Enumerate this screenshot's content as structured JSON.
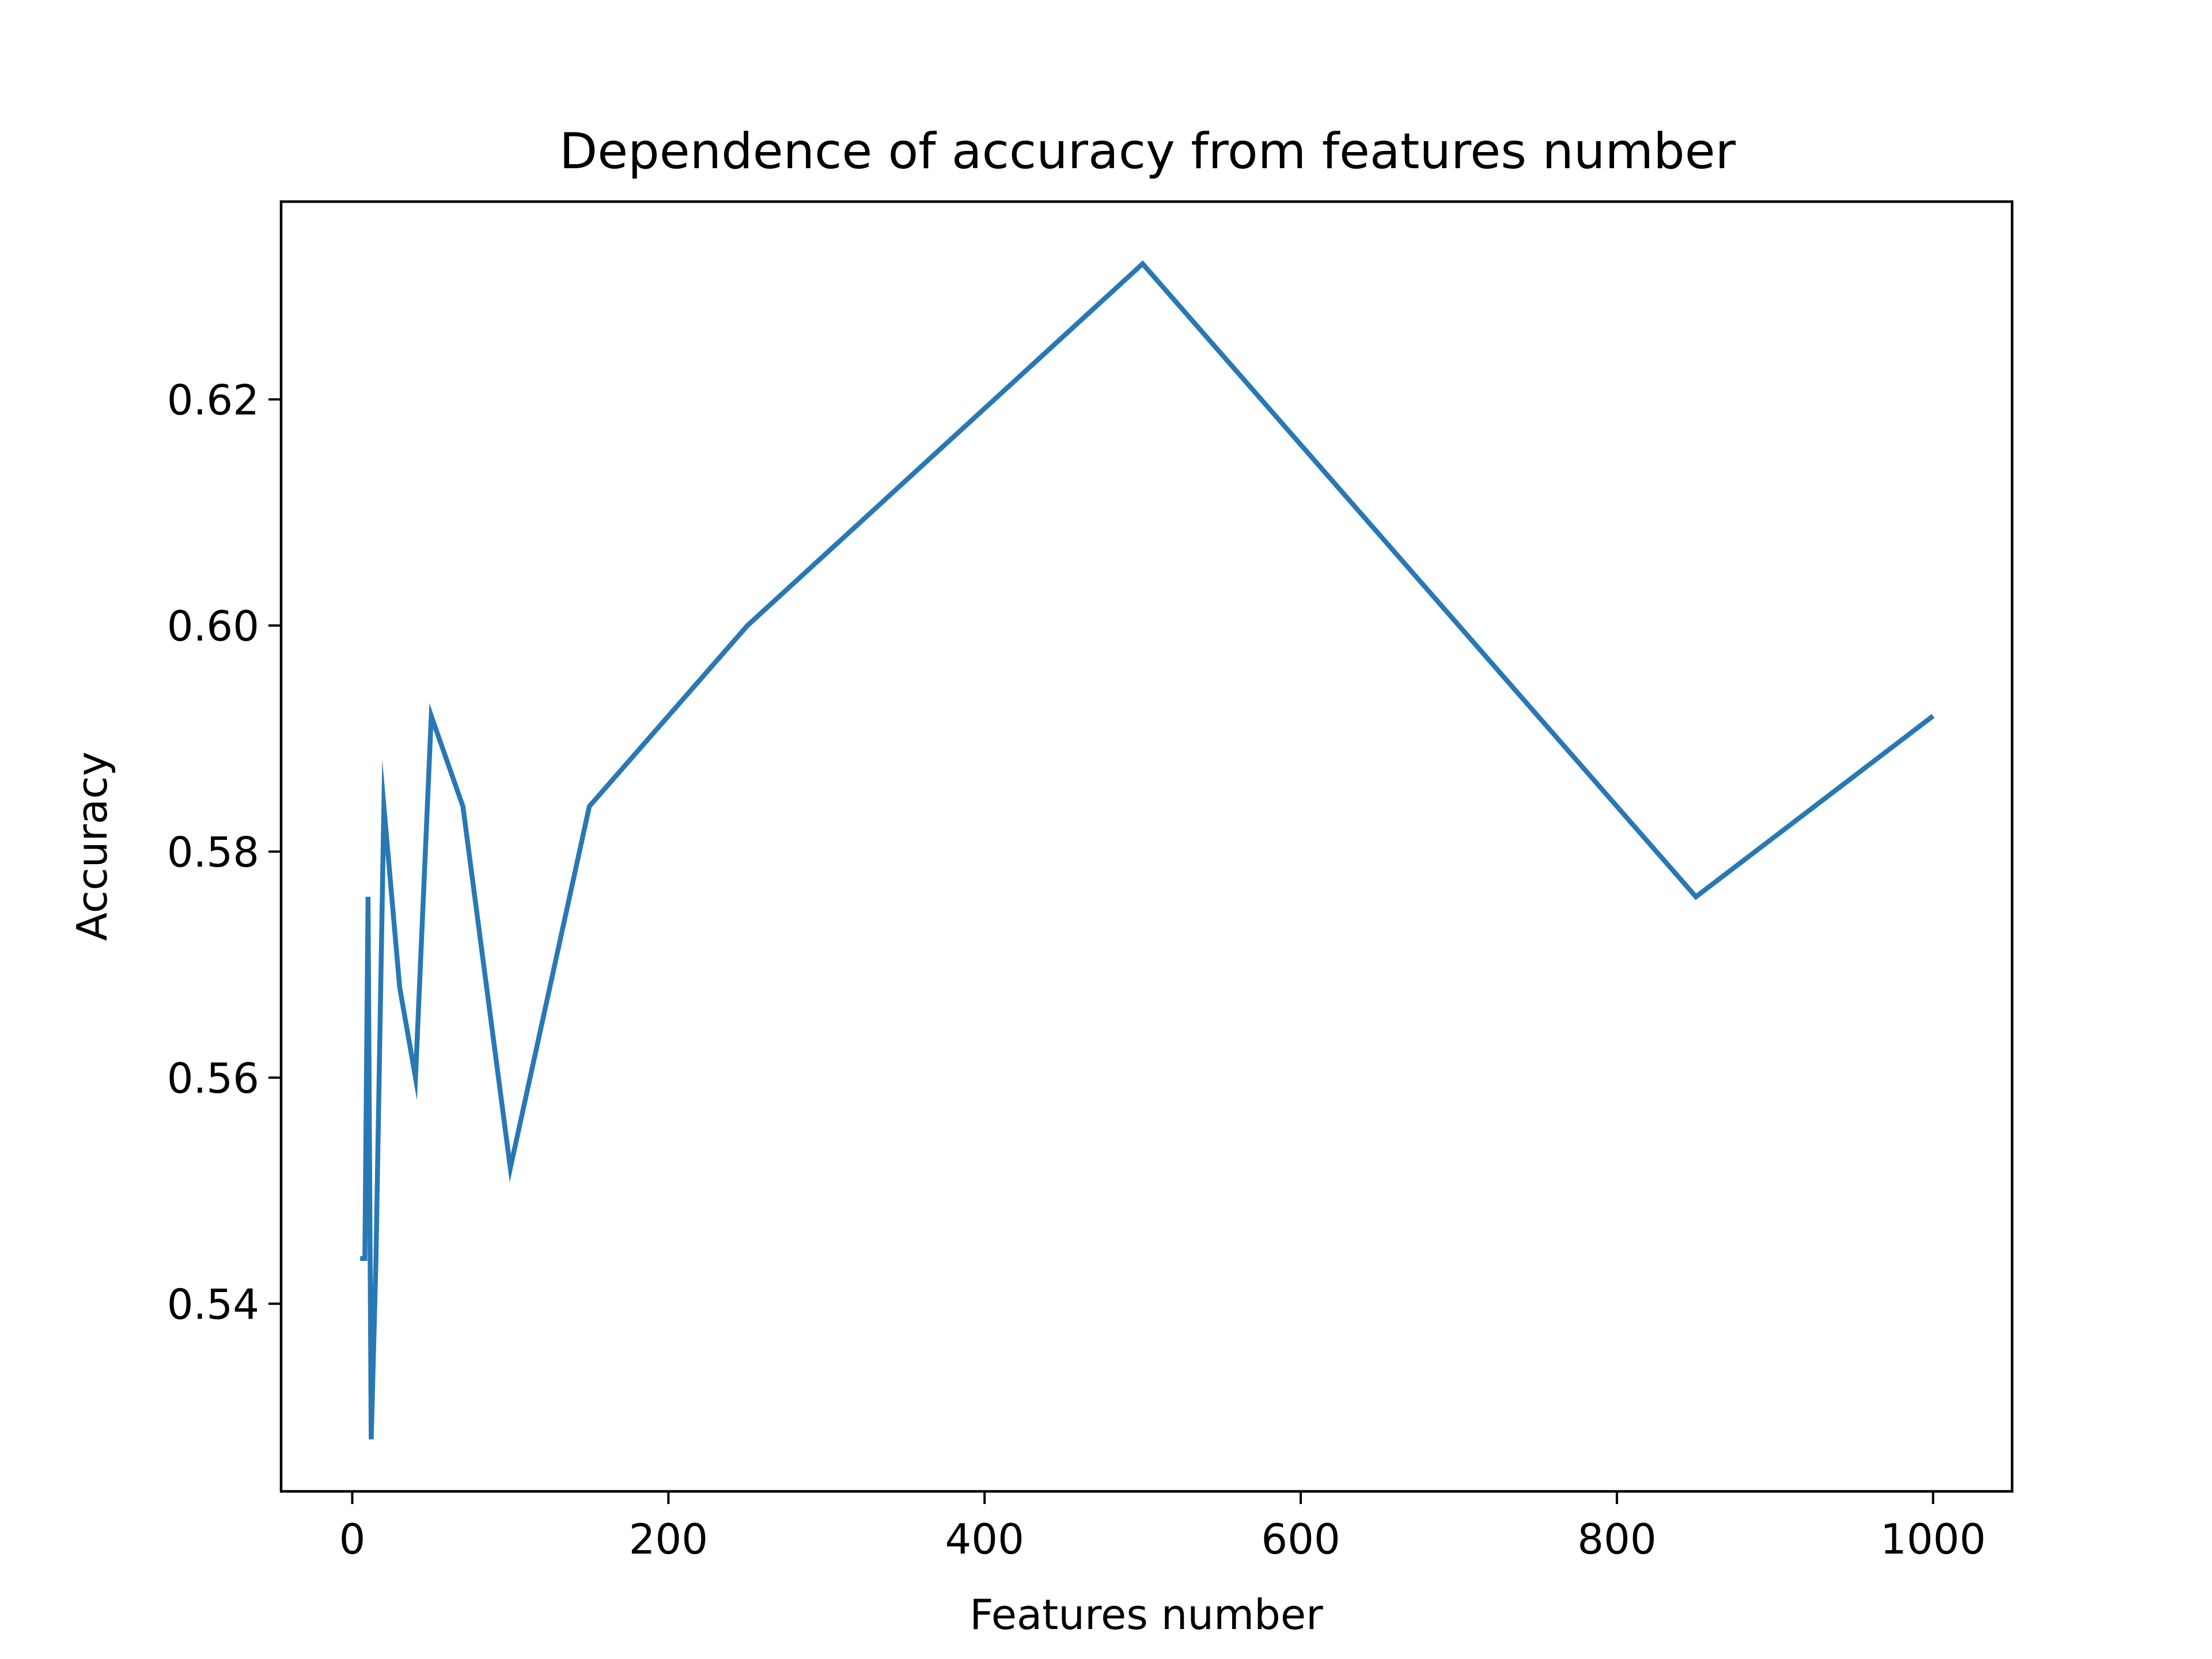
{
  "chart_data": {
    "type": "line",
    "title": "Dependence of accuracy from features number",
    "xlabel": "Features number",
    "ylabel": "Accuracy",
    "xlim": [
      -45,
      1050
    ],
    "ylim": [
      0.5234,
      0.6375
    ],
    "xticks": [
      0,
      200,
      400,
      600,
      800,
      1000
    ],
    "xtick_labels": [
      "0",
      "200",
      "400",
      "600",
      "800",
      "1000"
    ],
    "yticks": [
      0.54,
      0.56,
      0.58,
      0.6,
      0.62
    ],
    "ytick_labels": [
      "0.54",
      "0.56",
      "0.58",
      "0.60",
      "0.62"
    ],
    "grid": false,
    "legend": false,
    "series": [
      {
        "color": "#2878b5",
        "x": [
          5,
          8,
          10,
          12,
          15,
          20,
          30,
          40,
          50,
          70,
          100,
          150,
          250,
          500,
          850,
          1000
        ],
        "y": [
          0.544,
          0.544,
          0.576,
          0.528,
          0.544,
          0.584,
          0.568,
          0.56,
          0.592,
          0.584,
          0.552,
          0.584,
          0.6,
          0.632,
          0.576,
          0.592
        ]
      }
    ]
  }
}
